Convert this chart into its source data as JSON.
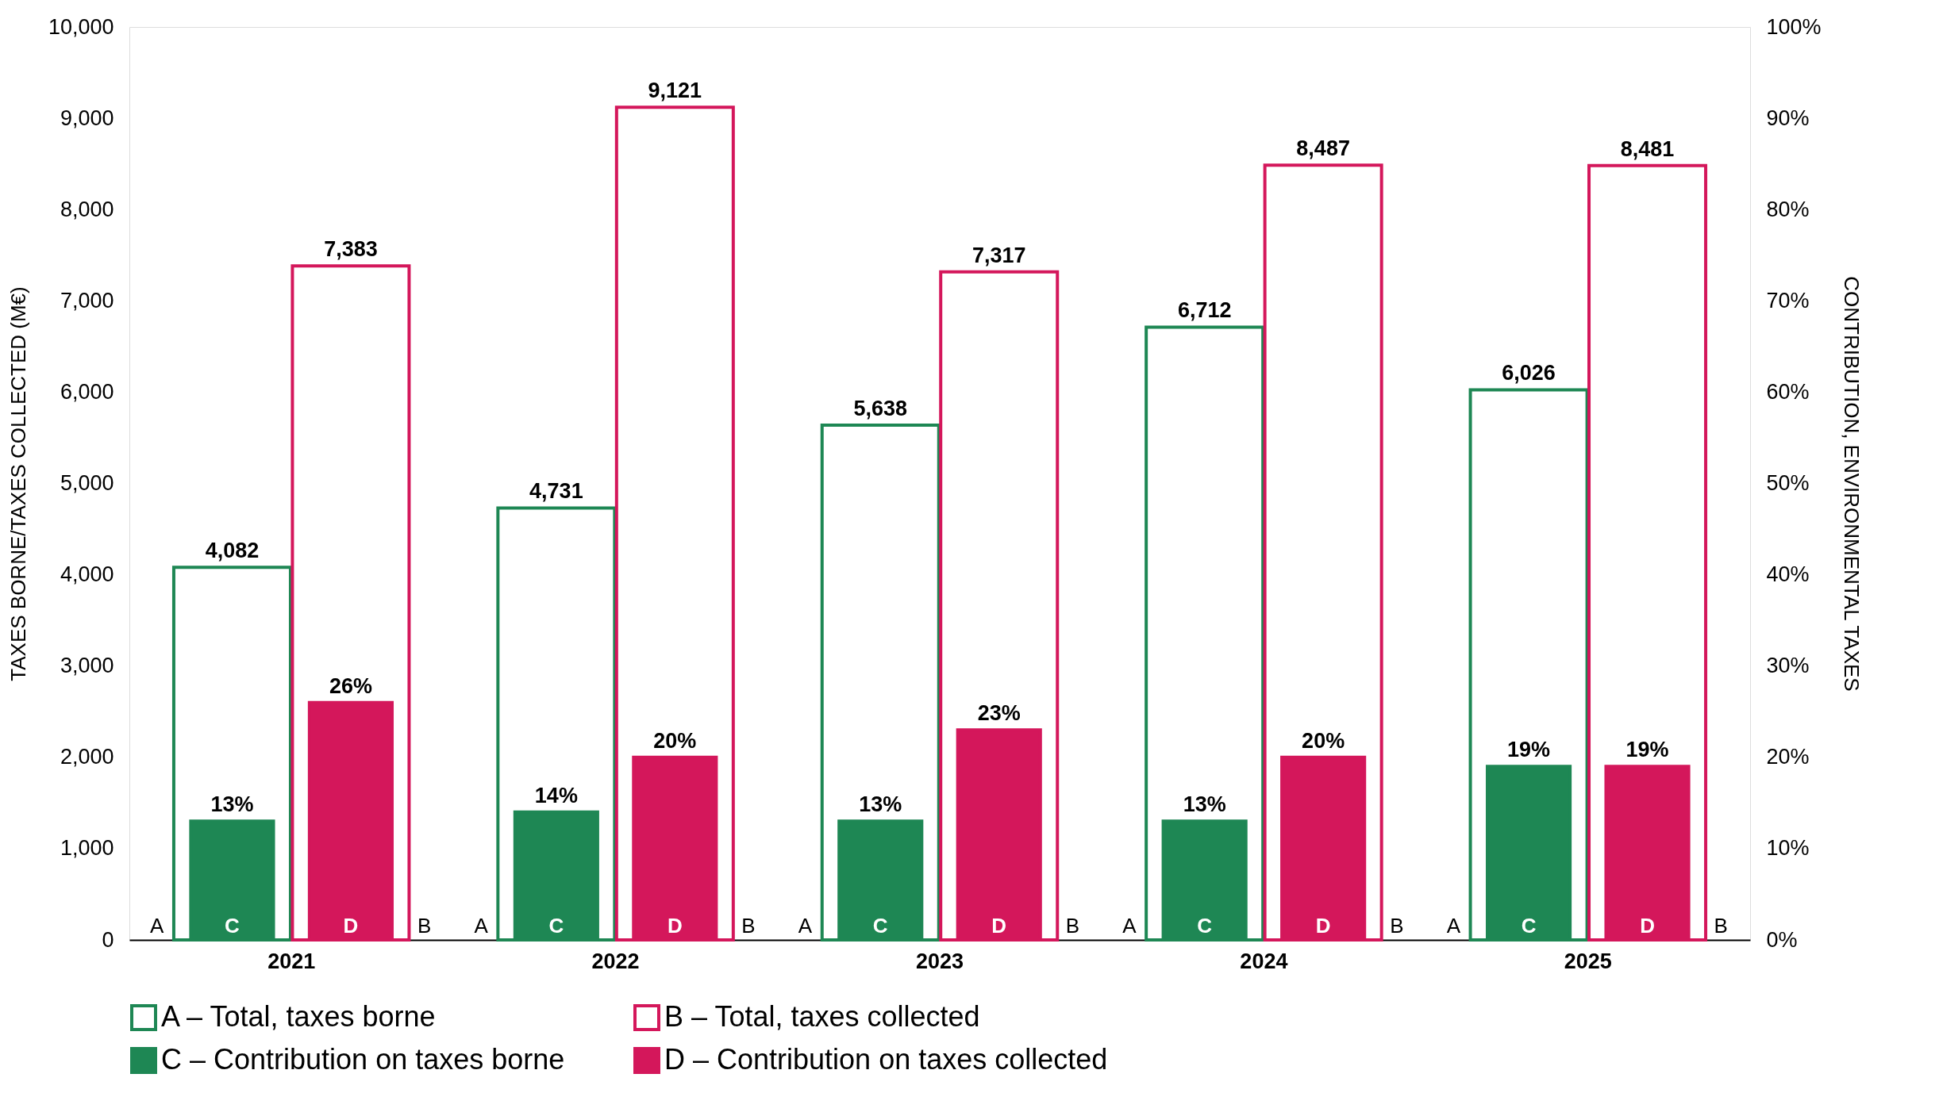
{
  "chart_data": {
    "type": "bar",
    "categories": [
      "2021",
      "2022",
      "2023",
      "2024",
      "2025"
    ],
    "ylabel": "TAXES BORNE/TAXES COLLECTED (M€)",
    "y2label": "CONTRIBUTION, ENVIRONMENTAL TAXES",
    "series": [
      {
        "name": "A – Total, taxes borne",
        "color": "#1e8754",
        "values": [
          4082,
          4731,
          5638,
          6712,
          6026
        ],
        "value_labels": [
          "4,082",
          "4,731",
          "5,638",
          "6,712",
          "6,026"
        ]
      },
      {
        "name": "B – Total, taxes collected",
        "color": "#d4175b",
        "values": [
          7383,
          9121,
          7317,
          8487,
          8481
        ],
        "value_labels": [
          "7,383",
          "9,121",
          "7,317",
          "8,487",
          "8,481"
        ]
      },
      {
        "name": "C – Contribution on taxes borne",
        "color": "#1e8754",
        "axis": "y2",
        "values": [
          13,
          14,
          13,
          13,
          19
        ],
        "value_labels": [
          "13%",
          "14%",
          "13%",
          "13%",
          "19%"
        ]
      },
      {
        "name": "D – Contribution on taxes collected",
        "color": "#d4175b",
        "axis": "y2",
        "values": [
          26,
          20,
          23,
          20,
          19
        ],
        "value_labels": [
          "26%",
          "20%",
          "23%",
          "20%",
          "19%"
        ]
      }
    ],
    "ylim": [
      0,
      10000
    ],
    "yticks": [
      0,
      {
        "value": 1000,
        "label": "1,000"
      },
      {
        "value": 2000,
        "label": "2,000"
      },
      {
        "value": 3000,
        "label": "3,000"
      },
      {
        "value": 4000,
        "label": "4,000"
      },
      {
        "value": 5000,
        "label": "5,000"
      },
      {
        "value": 6000,
        "label": "6,000"
      },
      {
        "value": 7000,
        "label": "7,000"
      },
      {
        "value": 8000,
        "label": "8,000"
      },
      {
        "value": 9000,
        "label": "9,000"
      },
      {
        "value": 10000,
        "label": "10,000"
      }
    ],
    "y2lim": [
      0,
      100
    ],
    "y2ticks": [
      {
        "value": 0,
        "label": "0%"
      },
      {
        "value": 10,
        "label": "10%"
      },
      {
        "value": 20,
        "label": "20%"
      },
      {
        "value": 30,
        "label": "30%"
      },
      {
        "value": 40,
        "label": "40%"
      },
      {
        "value": 50,
        "label": "50%"
      },
      {
        "value": 60,
        "label": "60%"
      },
      {
        "value": 70,
        "label": "70%"
      },
      {
        "value": 80,
        "label": "80%"
      },
      {
        "value": 90,
        "label": "90%"
      },
      {
        "value": 100,
        "label": "100%"
      }
    ],
    "annotations": [
      "A",
      "C",
      "D",
      "B",
      "A",
      "C",
      "D",
      "B",
      "A",
      "C",
      "D",
      "B",
      "A",
      "C",
      "D",
      "B",
      "A",
      "C",
      "D",
      "B"
    ],
    "grid": false,
    "legend": "bottom left"
  }
}
